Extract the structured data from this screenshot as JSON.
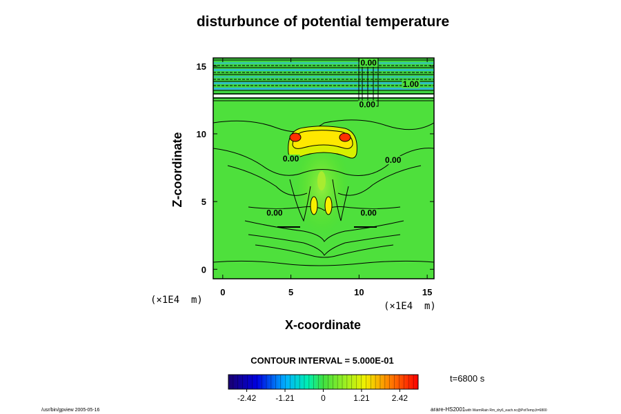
{
  "chart_data": {
    "type": "heatmap",
    "title": "disturbunce of potential temperature",
    "xlabel": "X-coordinate",
    "ylabel": "Z-coordinate",
    "x_unit": "(×1E4  m)",
    "z_unit": "(×1E4  m)",
    "xlim": [
      -0.7,
      15.5
    ],
    "ylim": [
      -0.7,
      15.6
    ],
    "x_ticks": [
      0,
      5,
      10,
      15
    ],
    "y_ticks": [
      0,
      5,
      10,
      15
    ],
    "contour_interval_text": "CONTOUR INTERVAL = 5.000E-01",
    "time_text": "t=6800 s",
    "colorbar": {
      "min": -3.0,
      "max": 3.0,
      "ticks": [
        -2.42,
        -1.21,
        0,
        1.21,
        2.42
      ],
      "tick_labels": [
        "-2.42",
        "-1.21",
        "0",
        "1.21",
        "2.42"
      ]
    },
    "contour_labels": [
      {
        "text": "0.00",
        "x": 10.7,
        "z": 15.1
      },
      {
        "text": "1.00",
        "x": 13.8,
        "z": 13.5
      },
      {
        "text": "0.00",
        "x": 10.6,
        "z": 12.0
      },
      {
        "text": "0.00",
        "x": 5.0,
        "z": 8.0
      },
      {
        "text": "0.00",
        "x": 12.5,
        "z": 7.9
      },
      {
        "text": "0.00",
        "x": 3.8,
        "z": 4.0
      },
      {
        "text": "0.00",
        "x": 10.7,
        "z": 4.0
      }
    ],
    "features": [
      {
        "name": "upper-warm-cap",
        "x": 7.4,
        "z": 9.4,
        "value": 1.0
      },
      {
        "name": "left-hot-spot",
        "x": 5.5,
        "z": 9.8,
        "value": 2.4
      },
      {
        "name": "right-hot-spot",
        "x": 9.2,
        "z": 9.8,
        "value": 2.4
      },
      {
        "name": "left-lower-lobe",
        "x": 6.8,
        "z": 4.6,
        "value": 0.8
      },
      {
        "name": "right-lower-lobe",
        "x": 7.8,
        "z": 4.6,
        "value": 0.8
      }
    ]
  },
  "footer": {
    "left": "/usr/bin/gpview 2005-05-16",
    "right_main": "arare-HS2001",
    "right_small": "with WarmRain Rm_dry6_each.nc@PotTemp,lt=6800"
  }
}
